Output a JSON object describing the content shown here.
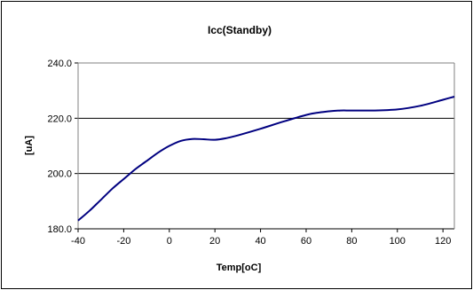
{
  "chart_data": {
    "type": "line",
    "title": "Icc(Standby)",
    "xlabel": "Temp[oC]",
    "ylabel": "[uA]",
    "xlim": [
      -40,
      125
    ],
    "ylim": [
      180,
      240
    ],
    "x_ticks": [
      -40,
      -20,
      0,
      20,
      40,
      60,
      80,
      100,
      120
    ],
    "y_ticks": [
      "180.0",
      "200.0",
      "220.0",
      "240.0"
    ],
    "grid": "horizontal major",
    "legend": "none",
    "series": [
      {
        "color": "#000080",
        "points": [
          [
            -40,
            183.0
          ],
          [
            -35,
            186.5
          ],
          [
            -30,
            190.5
          ],
          [
            -25,
            194.5
          ],
          [
            -20,
            198.0
          ],
          [
            -15,
            201.5
          ],
          [
            -10,
            204.5
          ],
          [
            -5,
            207.5
          ],
          [
            0,
            210.0
          ],
          [
            5,
            211.8
          ],
          [
            10,
            212.5
          ],
          [
            15,
            212.4
          ],
          [
            20,
            212.2
          ],
          [
            25,
            212.8
          ],
          [
            30,
            213.8
          ],
          [
            40,
            216.2
          ],
          [
            50,
            218.8
          ],
          [
            60,
            221.2
          ],
          [
            65,
            222.0
          ],
          [
            70,
            222.5
          ],
          [
            75,
            222.8
          ],
          [
            80,
            222.8
          ],
          [
            90,
            222.8
          ],
          [
            100,
            223.2
          ],
          [
            110,
            224.5
          ],
          [
            120,
            226.7
          ],
          [
            125,
            227.8
          ]
        ]
      }
    ]
  }
}
